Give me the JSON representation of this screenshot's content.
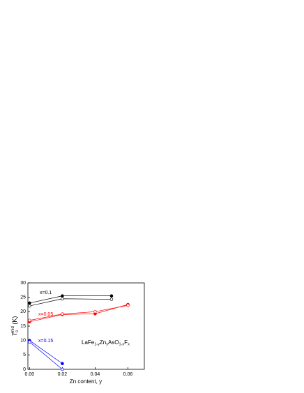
{
  "chart_data": {
    "type": "line",
    "x_label": "Zn content, y",
    "y_label": [
      "T",
      "c",
      "mid",
      " (K)"
    ],
    "formula": [
      "LaFe",
      "1-y",
      "Zn",
      "y",
      "AsO",
      "1-x",
      "F",
      "x"
    ],
    "xlim": [
      -0.001,
      0.07
    ],
    "xticks": [
      {
        "value": 0,
        "label": "0.00"
      },
      {
        "value": 0.02,
        "label": "0.02"
      },
      {
        "value": 0.04,
        "label": "0.04"
      },
      {
        "value": 0.06,
        "label": "0.06"
      }
    ],
    "ylim": [
      0,
      30
    ],
    "yticks": [
      0,
      5,
      10,
      15,
      20,
      25,
      30
    ],
    "annotations": [
      {
        "text": "x=0.1",
        "color": "#000000"
      },
      {
        "text": "x=0.05",
        "color": "#ff0000"
      },
      {
        "text": "x=0.15",
        "color": "#0000ff"
      }
    ],
    "series": [
      {
        "color": "#000000",
        "marker": "filled",
        "x": [
          0,
          0.02,
          0.05
        ],
        "values": [
          23,
          25.5,
          25.5
        ]
      },
      {
        "color": "#000000",
        "marker": "open",
        "x": [
          0,
          0.02,
          0.05
        ],
        "values": [
          22,
          24.5,
          24.3
        ]
      },
      {
        "color": "#ff0000",
        "marker": "filled",
        "x": [
          0,
          0.02,
          0.04,
          0.06
        ],
        "values": [
          16.5,
          19,
          19.3,
          22.5
        ]
      },
      {
        "color": "#ff0000",
        "marker": "open",
        "x": [
          0,
          0.02,
          0.04,
          0.06
        ],
        "values": [
          17,
          19.2,
          20,
          22.2
        ]
      },
      {
        "color": "#0000ff",
        "marker": "filled",
        "x": [
          0,
          0.02
        ],
        "values": [
          10,
          2
        ]
      },
      {
        "color": "#0000ff",
        "marker": "open",
        "x": [
          0,
          0.02
        ],
        "values": [
          9.5,
          0
        ]
      }
    ]
  }
}
